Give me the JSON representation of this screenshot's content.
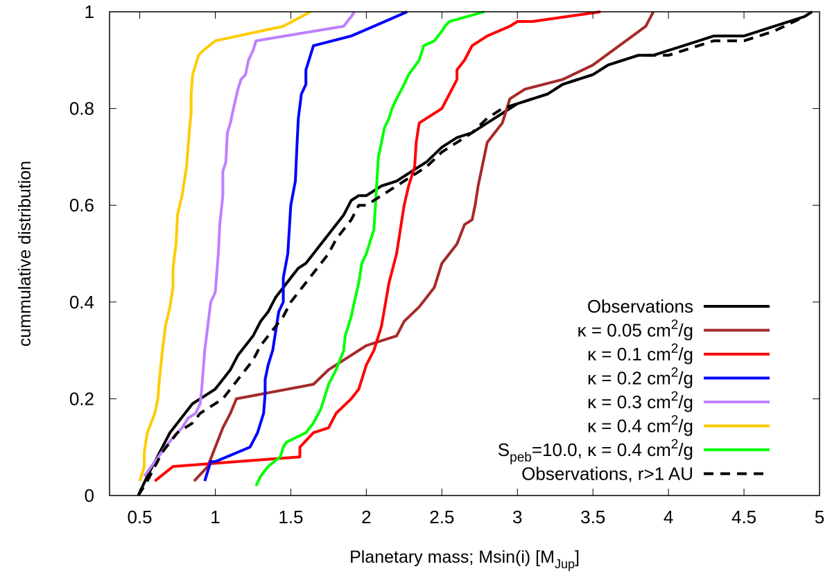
{
  "chart_data": {
    "type": "line",
    "title": "",
    "xlabel": "Planetary mass; Msin(i) [M",
    "xlabel_sub": "Jup",
    "xlabel_end": "]",
    "ylabel": "cummulative distribution",
    "xlim": [
      0.3,
      5.0
    ],
    "ylim": [
      0,
      1
    ],
    "xticks": [
      0.5,
      1,
      1.5,
      2,
      2.5,
      3,
      3.5,
      4,
      4.5,
      5
    ],
    "xtick_labels": [
      "0.5",
      "1",
      "1.5",
      "2",
      "2.5",
      "3",
      "3.5",
      "4",
      "4.5",
      "5"
    ],
    "yticks": [
      0,
      0.2,
      0.4,
      0.6,
      0.8,
      1
    ],
    "ytick_labels": [
      "0",
      "0.2",
      "0.4",
      "0.6",
      "0.8",
      "1"
    ],
    "grid": false,
    "legend_position": "bottom-right",
    "series": [
      {
        "name": "Observations",
        "label_parts": {
          "pre": "Observations"
        },
        "color": "#000000",
        "dash": "solid",
        "x": [
          0.49,
          0.55,
          0.6,
          0.65,
          0.7,
          0.75,
          0.8,
          0.85,
          0.9,
          0.95,
          1.0,
          1.05,
          1.1,
          1.15,
          1.2,
          1.25,
          1.3,
          1.35,
          1.4,
          1.45,
          1.5,
          1.55,
          1.6,
          1.65,
          1.7,
          1.75,
          1.8,
          1.85,
          1.9,
          1.95,
          2.0,
          2.05,
          2.1,
          2.2,
          2.3,
          2.4,
          2.5,
          2.6,
          2.7,
          2.8,
          2.9,
          3.0,
          3.1,
          3.2,
          3.3,
          3.4,
          3.5,
          3.6,
          3.7,
          3.8,
          3.9,
          4.0,
          4.1,
          4.3,
          4.5,
          4.7,
          4.9,
          4.95
        ],
        "y": [
          0.0,
          0.04,
          0.07,
          0.1,
          0.13,
          0.15,
          0.17,
          0.19,
          0.2,
          0.21,
          0.22,
          0.24,
          0.26,
          0.29,
          0.31,
          0.33,
          0.36,
          0.38,
          0.41,
          0.43,
          0.45,
          0.47,
          0.48,
          0.5,
          0.52,
          0.54,
          0.56,
          0.58,
          0.61,
          0.62,
          0.62,
          0.63,
          0.64,
          0.65,
          0.67,
          0.69,
          0.72,
          0.74,
          0.75,
          0.77,
          0.79,
          0.81,
          0.82,
          0.83,
          0.85,
          0.86,
          0.87,
          0.89,
          0.9,
          0.91,
          0.91,
          0.92,
          0.93,
          0.95,
          0.95,
          0.97,
          0.99,
          1.0
        ]
      },
      {
        "name": "κ = 0.05 cm²/g",
        "label_parts": {
          "pre": "κ = 0.05 cm",
          "sup": "2",
          "post": "/g"
        },
        "color": "#a52a2a",
        "dash": "solid",
        "x": [
          0.86,
          0.95,
          1.0,
          1.05,
          1.1,
          1.14,
          1.65,
          1.75,
          1.85,
          1.95,
          2.0,
          2.1,
          2.2,
          2.25,
          2.35,
          2.45,
          2.5,
          2.55,
          2.6,
          2.65,
          2.7,
          2.72,
          2.74,
          2.76,
          2.8,
          2.9,
          2.95,
          3.05,
          3.3,
          3.5,
          3.85,
          3.9
        ],
        "y": [
          0.03,
          0.06,
          0.1,
          0.14,
          0.17,
          0.2,
          0.23,
          0.26,
          0.28,
          0.3,
          0.31,
          0.32,
          0.33,
          0.36,
          0.39,
          0.43,
          0.48,
          0.5,
          0.52,
          0.56,
          0.57,
          0.6,
          0.64,
          0.67,
          0.73,
          0.77,
          0.82,
          0.84,
          0.86,
          0.89,
          0.97,
          1.0
        ]
      },
      {
        "name": "κ = 0.1 cm²/g",
        "label_parts": {
          "pre": "κ = 0.1 cm",
          "sup": "2",
          "post": "/g"
        },
        "color": "#ff0000",
        "dash": "solid",
        "x": [
          0.6,
          0.72,
          1.56,
          1.56,
          1.65,
          1.75,
          1.8,
          1.9,
          1.95,
          2.0,
          2.05,
          2.1,
          2.15,
          2.2,
          2.25,
          2.28,
          2.32,
          2.33,
          2.35,
          2.45,
          2.5,
          2.55,
          2.6,
          2.6,
          2.65,
          2.7,
          2.8,
          2.95,
          3.0,
          3.1,
          3.55
        ],
        "y": [
          0.03,
          0.06,
          0.08,
          0.1,
          0.13,
          0.14,
          0.17,
          0.2,
          0.22,
          0.27,
          0.3,
          0.35,
          0.44,
          0.5,
          0.6,
          0.64,
          0.68,
          0.73,
          0.77,
          0.79,
          0.8,
          0.83,
          0.86,
          0.88,
          0.9,
          0.93,
          0.95,
          0.97,
          0.98,
          0.98,
          1.0
        ]
      },
      {
        "name": "κ = 0.2 cm²/g",
        "label_parts": {
          "pre": "κ = 0.2 cm",
          "sup": "2",
          "post": "/g"
        },
        "color": "#0000ff",
        "dash": "solid",
        "x": [
          0.93,
          0.95,
          0.97,
          1.0,
          1.23,
          1.28,
          1.32,
          1.33,
          1.33,
          1.35,
          1.38,
          1.4,
          1.42,
          1.45,
          1.45,
          1.48,
          1.5,
          1.53,
          1.54,
          1.55,
          1.57,
          1.6,
          1.6,
          1.62,
          1.65,
          1.9,
          2.05,
          2.27
        ],
        "y": [
          0.03,
          0.05,
          0.07,
          0.07,
          0.1,
          0.13,
          0.17,
          0.21,
          0.24,
          0.27,
          0.3,
          0.34,
          0.38,
          0.4,
          0.45,
          0.5,
          0.6,
          0.65,
          0.72,
          0.78,
          0.83,
          0.85,
          0.88,
          0.9,
          0.93,
          0.95,
          0.97,
          1.0
        ]
      },
      {
        "name": "κ = 0.3 cm²/g",
        "label_parts": {
          "pre": "κ = 0.3 cm",
          "sup": "2",
          "post": "/g"
        },
        "color": "#bf80ff",
        "dash": "solid",
        "x": [
          0.53,
          0.6,
          0.67,
          0.72,
          0.78,
          0.82,
          0.87,
          0.9,
          0.91,
          0.92,
          0.93,
          0.95,
          0.97,
          1.0,
          1.02,
          1.03,
          1.05,
          1.05,
          1.07,
          1.08,
          1.1,
          1.12,
          1.15,
          1.17,
          1.2,
          1.22,
          1.25,
          1.27,
          1.85,
          1.9,
          1.92
        ],
        "y": [
          0.04,
          0.07,
          0.1,
          0.12,
          0.14,
          0.16,
          0.17,
          0.19,
          0.22,
          0.26,
          0.3,
          0.35,
          0.4,
          0.42,
          0.5,
          0.56,
          0.62,
          0.67,
          0.69,
          0.75,
          0.77,
          0.8,
          0.84,
          0.86,
          0.87,
          0.9,
          0.92,
          0.94,
          0.97,
          0.99,
          1.0
        ]
      },
      {
        "name": "κ = 0.4 cm²/g",
        "label_parts": {
          "pre": "κ = 0.4 cm",
          "sup": "2",
          "post": "/g"
        },
        "color": "#ffcc00",
        "dash": "solid",
        "x": [
          0.5,
          0.53,
          0.53,
          0.55,
          0.6,
          0.62,
          0.63,
          0.65,
          0.67,
          0.7,
          0.72,
          0.72,
          0.74,
          0.75,
          0.78,
          0.8,
          0.81,
          0.82,
          0.83,
          0.84,
          0.84,
          0.85,
          0.89,
          0.92,
          1.0,
          1.45,
          1.57,
          1.63
        ],
        "y": [
          0.03,
          0.06,
          0.09,
          0.13,
          0.17,
          0.2,
          0.24,
          0.3,
          0.35,
          0.39,
          0.43,
          0.47,
          0.52,
          0.58,
          0.62,
          0.66,
          0.68,
          0.72,
          0.76,
          0.79,
          0.83,
          0.87,
          0.91,
          0.92,
          0.94,
          0.97,
          0.99,
          1.0
        ]
      },
      {
        "name": "Speb=10.0, κ = 0.4 cm²/g",
        "label_parts": {
          "pre": "S",
          "sub": "peb",
          "mid": "=10.0, κ = 0.4 cm",
          "sup": "2",
          "post": "/g"
        },
        "color": "#00ff00",
        "dash": "solid",
        "x": [
          1.27,
          1.3,
          1.35,
          1.43,
          1.45,
          1.47,
          1.6,
          1.65,
          1.7,
          1.72,
          1.75,
          1.8,
          1.85,
          1.86,
          1.9,
          1.92,
          1.95,
          1.97,
          2.0,
          2.05,
          2.06,
          2.07,
          2.08,
          2.1,
          2.12,
          2.15,
          2.17,
          2.2,
          2.25,
          2.28,
          2.35,
          2.38,
          2.45,
          2.5,
          2.52,
          2.55,
          2.78
        ],
        "y": [
          0.02,
          0.04,
          0.06,
          0.08,
          0.1,
          0.11,
          0.13,
          0.15,
          0.18,
          0.2,
          0.23,
          0.26,
          0.3,
          0.33,
          0.37,
          0.4,
          0.44,
          0.48,
          0.5,
          0.55,
          0.6,
          0.65,
          0.7,
          0.73,
          0.76,
          0.78,
          0.8,
          0.82,
          0.85,
          0.87,
          0.9,
          0.93,
          0.94,
          0.96,
          0.97,
          0.98,
          1.0
        ]
      },
      {
        "name": "Observations, r>1 AU",
        "label_parts": {
          "pre": "Observations, r>1 AU"
        },
        "color": "#000000",
        "dash": "dashed",
        "x": [
          0.49,
          0.55,
          0.6,
          0.65,
          0.7,
          0.75,
          0.8,
          0.85,
          0.9,
          0.95,
          1.0,
          1.05,
          1.1,
          1.15,
          1.2,
          1.25,
          1.3,
          1.35,
          1.4,
          1.45,
          1.5,
          1.55,
          1.6,
          1.65,
          1.7,
          1.75,
          1.8,
          1.85,
          1.9,
          1.95,
          2.0,
          2.05,
          2.1,
          2.2,
          2.3,
          2.4,
          2.5,
          2.6,
          2.7,
          2.8,
          2.9,
          3.0,
          3.1,
          3.2,
          3.3,
          3.4,
          3.5,
          3.6,
          3.7,
          3.8,
          3.9,
          4.0,
          4.1,
          4.3,
          4.5,
          4.7,
          4.9,
          4.95
        ],
        "y": [
          0.0,
          0.03,
          0.06,
          0.09,
          0.11,
          0.13,
          0.14,
          0.15,
          0.17,
          0.18,
          0.19,
          0.2,
          0.22,
          0.24,
          0.26,
          0.28,
          0.31,
          0.33,
          0.35,
          0.37,
          0.4,
          0.42,
          0.44,
          0.46,
          0.48,
          0.5,
          0.53,
          0.55,
          0.57,
          0.6,
          0.6,
          0.61,
          0.62,
          0.64,
          0.66,
          0.68,
          0.71,
          0.73,
          0.75,
          0.78,
          0.8,
          0.81,
          0.82,
          0.83,
          0.85,
          0.86,
          0.87,
          0.89,
          0.9,
          0.91,
          0.91,
          0.91,
          0.92,
          0.94,
          0.94,
          0.96,
          0.99,
          1.0
        ]
      }
    ]
  }
}
